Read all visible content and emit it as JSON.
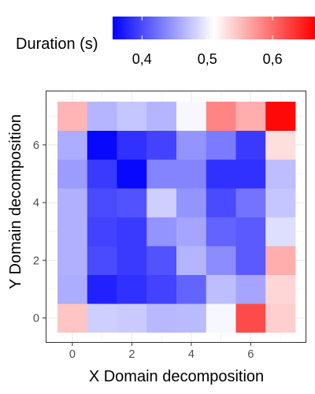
{
  "chart_data": {
    "type": "heatmap",
    "title": "",
    "xlabel": "X Domain decomposition",
    "ylabel": "Y Domain decomposition",
    "x_ticks": [
      0,
      2,
      4,
      6
    ],
    "y_ticks": [
      0,
      2,
      4,
      6
    ],
    "x_tick_labels": [
      "0",
      "2",
      "4",
      "6"
    ],
    "y_tick_labels": [
      "0",
      "2",
      "4",
      "6"
    ],
    "x": [
      0,
      1,
      2,
      3,
      4,
      5,
      6,
      7
    ],
    "y": [
      0,
      1,
      2,
      3,
      4,
      5,
      6,
      7
    ],
    "xlim": [
      -0.5,
      7.5
    ],
    "ylim": [
      -0.5,
      7.5
    ],
    "values": [
      [
        0.545,
        0.48,
        0.478,
        0.467,
        0.468,
        0.505,
        0.62,
        0.54
      ],
      [
        0.46,
        0.375,
        0.385,
        0.395,
        0.415,
        0.47,
        0.455,
        0.535
      ],
      [
        0.462,
        0.4,
        0.39,
        0.405,
        0.465,
        0.44,
        0.41,
        0.56
      ],
      [
        0.462,
        0.395,
        0.39,
        0.445,
        0.455,
        0.415,
        0.41,
        0.49
      ],
      [
        0.462,
        0.4,
        0.405,
        0.48,
        0.445,
        0.4,
        0.425,
        0.475
      ],
      [
        0.45,
        0.39,
        0.36,
        0.435,
        0.435,
        0.385,
        0.385,
        0.47
      ],
      [
        0.46,
        0.36,
        0.385,
        0.395,
        0.445,
        0.43,
        0.39,
        0.53
      ],
      [
        0.555,
        0.465,
        0.475,
        0.465,
        0.505,
        0.585,
        0.56,
        0.66
      ]
    ],
    "legend": {
      "title": "Duration (s)",
      "position": "top",
      "ticks": [
        0.4,
        0.5,
        0.6
      ],
      "tick_labels": [
        "0,4",
        "0,5",
        "0,6"
      ],
      "range": [
        0.355,
        0.665
      ],
      "colors": {
        "low": "#0000ff",
        "mid": "#ffffff",
        "high": "#ff0000"
      },
      "midpoint": 0.51
    },
    "grid": true,
    "panel_border_color": "#333333",
    "grid_color": "#ebebeb"
  }
}
